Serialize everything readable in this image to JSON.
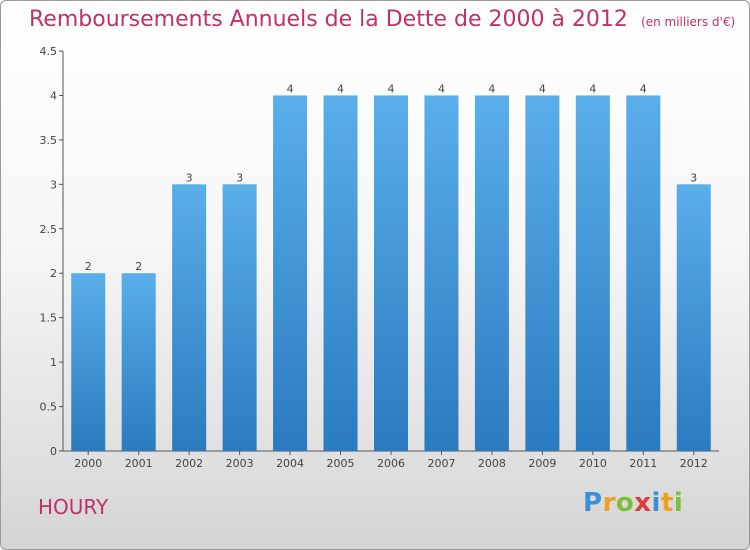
{
  "title": "Remboursements Annuels de la Dette de 2000 à 2012",
  "unit": "(en milliers d'€)",
  "commune": "HOURY",
  "logo": {
    "letters": [
      {
        "ch": "P",
        "color": "#3a8fd9"
      },
      {
        "ch": "r",
        "color": "#f0a020"
      },
      {
        "ch": "o",
        "color": "#7cbf3a"
      },
      {
        "ch": "x",
        "color": "#e03a3a"
      },
      {
        "ch": "i",
        "color": "#3a8fd9"
      },
      {
        "ch": "t",
        "color": "#f0a020"
      },
      {
        "ch": "i",
        "color": "#7cbf3a"
      }
    ]
  },
  "colors": {
    "title": "#c0306a",
    "bar_light": "#5aaeea",
    "bar_dark": "#2a7bbf",
    "axis": "#555555"
  },
  "chart_data": {
    "type": "bar",
    "categories": [
      "2000",
      "2001",
      "2002",
      "2003",
      "2004",
      "2005",
      "2006",
      "2007",
      "2008",
      "2009",
      "2010",
      "2011",
      "2012"
    ],
    "values": [
      2,
      2,
      3,
      3,
      4,
      4,
      4,
      4,
      4,
      4,
      4,
      4,
      3
    ],
    "data_labels": [
      "2",
      "2",
      "3",
      "3",
      "4",
      "4",
      "4",
      "4",
      "4",
      "4",
      "4",
      "4",
      "3"
    ],
    "yticks": [
      "0",
      "0.5",
      "1",
      "1.5",
      "2",
      "2.5",
      "3",
      "3.5",
      "4",
      "4.5"
    ],
    "ytick_values": [
      0,
      0.5,
      1,
      1.5,
      2,
      2.5,
      3,
      3.5,
      4,
      4.5
    ],
    "ylim": [
      0,
      4.5
    ],
    "xlabel": "",
    "ylabel": "",
    "grid": false
  }
}
